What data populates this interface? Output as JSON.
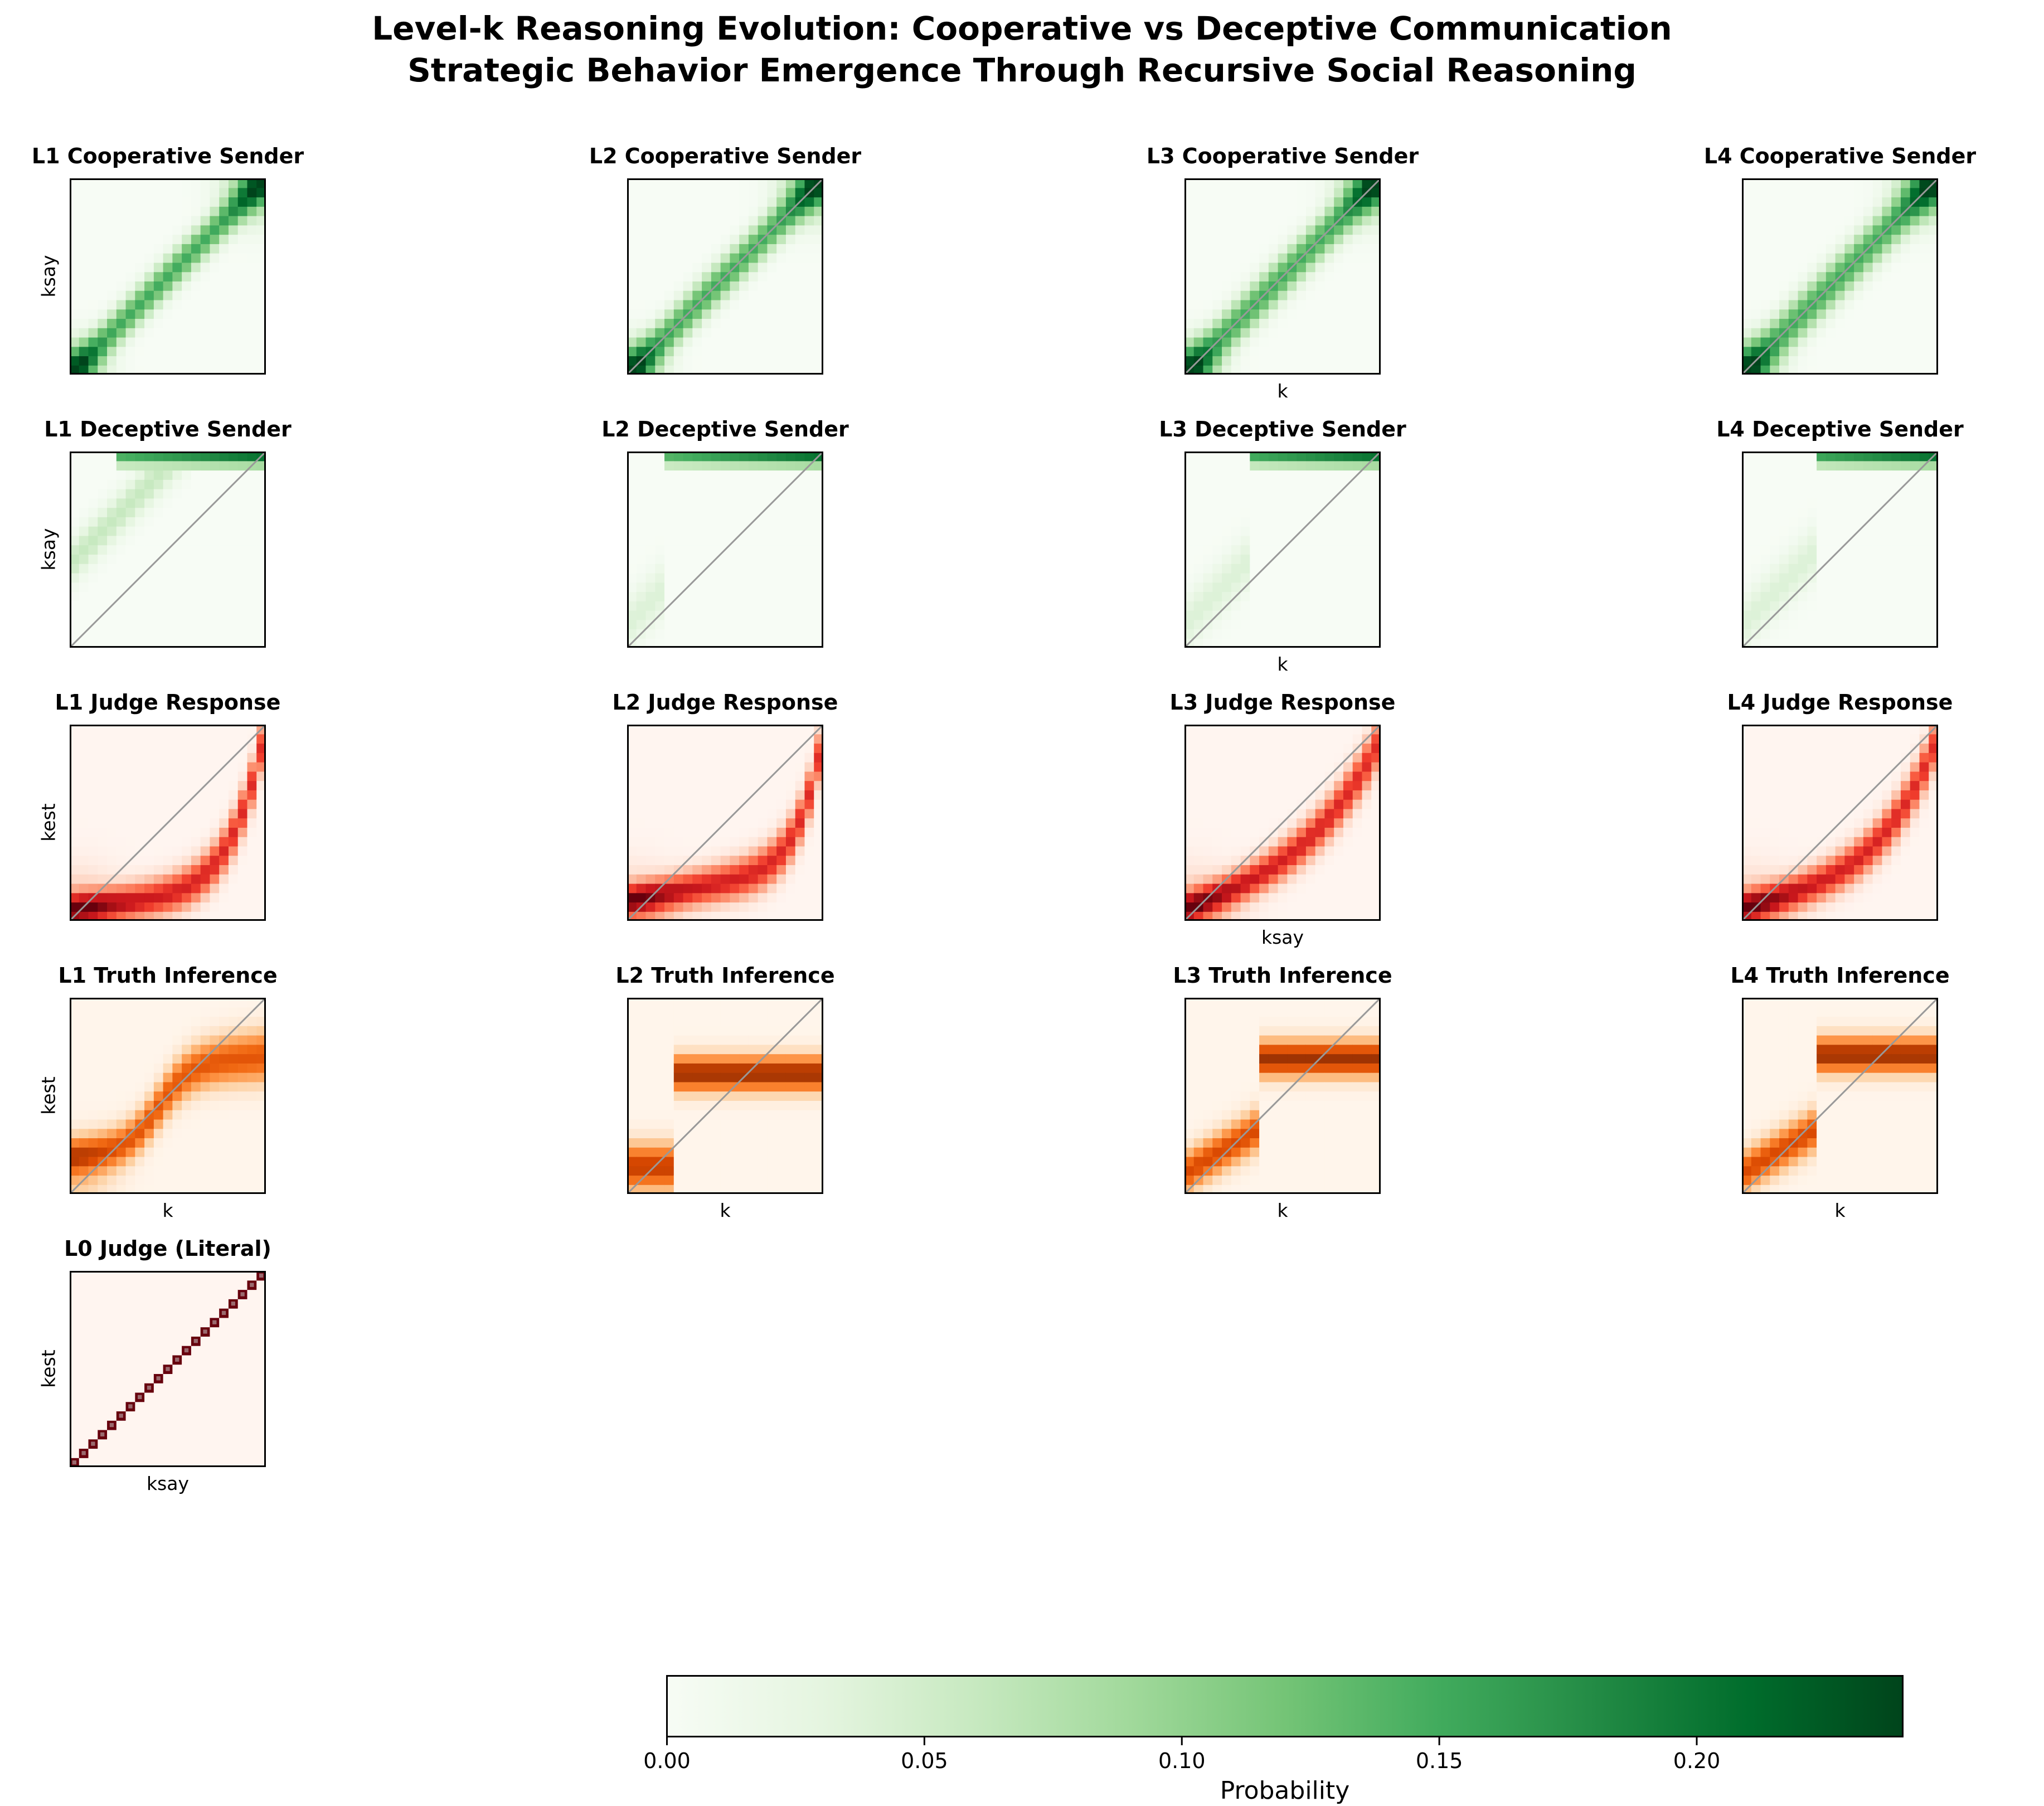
{
  "title_line1": "Level-k Reasoning Evolution: Cooperative vs Deceptive Communication",
  "title_line2": "Strategic Behavior Emergence Through Recursive Social Reasoning",
  "chart_data": {
    "type": "heatmap",
    "grid_size": 21,
    "colormaps": {
      "Greens": [
        "#f7fcf5",
        "#e5f5e0",
        "#c7e9c0",
        "#a1d99b",
        "#74c476",
        "#41ab5d",
        "#238b45",
        "#006d2c",
        "#00441b"
      ],
      "Reds": [
        "#fff5f0",
        "#fee0d2",
        "#fcbba1",
        "#fc9272",
        "#fb6a4a",
        "#ef3b2c",
        "#cb181d",
        "#a50f15",
        "#67000d"
      ],
      "Oranges": [
        "#fff5eb",
        "#fee6ce",
        "#fdd0a2",
        "#fdae6b",
        "#fd8d3c",
        "#f16913",
        "#d94801",
        "#a63603",
        "#7f2704"
      ]
    },
    "panels": [
      {
        "title": "L1 Cooperative Sender",
        "row": 0,
        "col": 0,
        "cmap": "Greens",
        "xlabel": "",
        "ylabel": "ksay",
        "diagonal": false,
        "kind": "coop",
        "level": 1
      },
      {
        "title": "L2 Cooperative Sender",
        "row": 0,
        "col": 1,
        "cmap": "Greens",
        "xlabel": "",
        "ylabel": "",
        "diagonal": true,
        "kind": "coop",
        "level": 2
      },
      {
        "title": "L3 Cooperative Sender",
        "row": 0,
        "col": 2,
        "cmap": "Greens",
        "xlabel": "k",
        "ylabel": "",
        "diagonal": true,
        "kind": "coop",
        "level": 3
      },
      {
        "title": "L4 Cooperative Sender",
        "row": 0,
        "col": 3,
        "cmap": "Greens",
        "xlabel": "",
        "ylabel": "",
        "diagonal": true,
        "kind": "coop",
        "level": 4
      },
      {
        "title": "L1 Deceptive Sender",
        "row": 1,
        "col": 0,
        "cmap": "Greens",
        "xlabel": "",
        "ylabel": "ksay",
        "diagonal": true,
        "kind": "decep",
        "level": 1
      },
      {
        "title": "L2 Deceptive Sender",
        "row": 1,
        "col": 1,
        "cmap": "Greens",
        "xlabel": "",
        "ylabel": "",
        "diagonal": true,
        "kind": "decep",
        "level": 2
      },
      {
        "title": "L3 Deceptive Sender",
        "row": 1,
        "col": 2,
        "cmap": "Greens",
        "xlabel": "k",
        "ylabel": "",
        "diagonal": true,
        "kind": "decep",
        "level": 3
      },
      {
        "title": "L4 Deceptive Sender",
        "row": 1,
        "col": 3,
        "cmap": "Greens",
        "xlabel": "",
        "ylabel": "",
        "diagonal": true,
        "kind": "decep",
        "level": 4
      },
      {
        "title": "L1 Judge Response",
        "row": 2,
        "col": 0,
        "cmap": "Reds",
        "xlabel": "",
        "ylabel": "kest",
        "diagonal": true,
        "kind": "judge",
        "level": 1
      },
      {
        "title": "L2 Judge Response",
        "row": 2,
        "col": 1,
        "cmap": "Reds",
        "xlabel": "",
        "ylabel": "",
        "diagonal": true,
        "kind": "judge",
        "level": 2
      },
      {
        "title": "L3 Judge Response",
        "row": 2,
        "col": 2,
        "cmap": "Reds",
        "xlabel": "ksay",
        "ylabel": "",
        "diagonal": true,
        "kind": "judge",
        "level": 3
      },
      {
        "title": "L4 Judge Response",
        "row": 2,
        "col": 3,
        "cmap": "Reds",
        "xlabel": "",
        "ylabel": "",
        "diagonal": true,
        "kind": "judge",
        "level": 4
      },
      {
        "title": "L1 Truth Inference",
        "row": 3,
        "col": 0,
        "cmap": "Oranges",
        "xlabel": "k",
        "ylabel": "kest",
        "diagonal": true,
        "kind": "truth",
        "level": 1
      },
      {
        "title": "L2 Truth Inference",
        "row": 3,
        "col": 1,
        "cmap": "Oranges",
        "xlabel": "k",
        "ylabel": "",
        "diagonal": true,
        "kind": "truth",
        "level": 2
      },
      {
        "title": "L3 Truth Inference",
        "row": 3,
        "col": 2,
        "cmap": "Oranges",
        "xlabel": "k",
        "ylabel": "",
        "diagonal": true,
        "kind": "truth",
        "level": 3
      },
      {
        "title": "L4 Truth Inference",
        "row": 3,
        "col": 3,
        "cmap": "Oranges",
        "xlabel": "k",
        "ylabel": "",
        "diagonal": true,
        "kind": "truth",
        "level": 4
      },
      {
        "title": "L0 Judge (Literal)",
        "row": 4,
        "col": 0,
        "cmap": "Reds",
        "xlabel": "ksay",
        "ylabel": "kest",
        "diagonal": false,
        "kind": "literal",
        "level": 0
      }
    ],
    "colorbar": {
      "cmap": "Greens",
      "range": [
        0,
        0.24
      ],
      "ticks": [
        "0.00",
        "0.05",
        "0.10",
        "0.15",
        "0.20"
      ],
      "tick_values": [
        0,
        0.05,
        0.1,
        0.15,
        0.2
      ],
      "label": "Probability"
    }
  }
}
